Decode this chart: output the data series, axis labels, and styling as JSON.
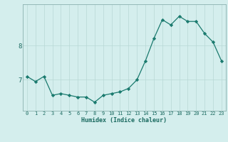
{
  "x": [
    0,
    1,
    2,
    3,
    4,
    5,
    6,
    7,
    8,
    9,
    10,
    11,
    12,
    13,
    14,
    15,
    16,
    17,
    18,
    19,
    20,
    21,
    22,
    23
  ],
  "y": [
    7.1,
    6.95,
    7.1,
    6.55,
    6.6,
    6.55,
    6.5,
    6.5,
    6.35,
    6.55,
    6.6,
    6.65,
    6.75,
    7.0,
    7.55,
    8.2,
    8.75,
    8.6,
    8.85,
    8.7,
    8.7,
    8.35,
    8.1,
    7.55
  ],
  "xlabel": "Humidex (Indice chaleur)",
  "yticks": [
    7,
    8
  ],
  "xticks": [
    0,
    1,
    2,
    3,
    4,
    5,
    6,
    7,
    8,
    9,
    10,
    11,
    12,
    13,
    14,
    15,
    16,
    17,
    18,
    19,
    20,
    21,
    22,
    23
  ],
  "line_color": "#1a7a6e",
  "marker_color": "#1a7a6e",
  "bg_color": "#d4eeed",
  "grid_color": "#b8d8d5",
  "axis_color": "#8ab0ae",
  "text_color": "#1a6a60",
  "ylim": [
    6.1,
    9.2
  ],
  "xlim": [
    -0.5,
    23.5
  ]
}
